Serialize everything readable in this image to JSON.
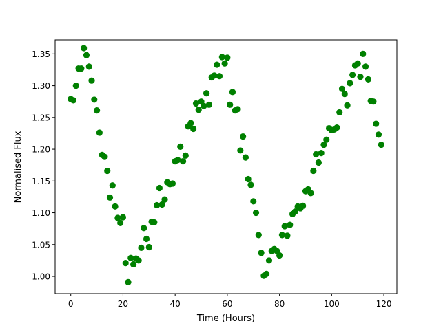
{
  "chart_data": {
    "type": "scatter",
    "title": "",
    "xlabel": "Time (Hours)",
    "ylabel": "Normalised Flux",
    "xlim": [
      -6.0,
      125.0
    ],
    "ylim": [
      0.973,
      1.372
    ],
    "xticks": [
      0,
      20,
      40,
      60,
      80,
      100,
      120
    ],
    "yticks": [
      1.0,
      1.05,
      1.1,
      1.15,
      1.2,
      1.25,
      1.3,
      1.35
    ],
    "xtick_labels": [
      "0",
      "20",
      "40",
      "60",
      "80",
      "100",
      "120"
    ],
    "ytick_labels": [
      "1.00",
      "1.05",
      "1.10",
      "1.15",
      "1.20",
      "1.25",
      "1.30",
      "1.35"
    ],
    "grid": false,
    "marker_color": "#008000",
    "series": [
      {
        "x": [
          0,
          1,
          2,
          3,
          4,
          5,
          6,
          7,
          8,
          9,
          10,
          11,
          12,
          13,
          14,
          15,
          16,
          17,
          18,
          19,
          20,
          21,
          22,
          23,
          24,
          25,
          26,
          27,
          28,
          29,
          30,
          31,
          32,
          33,
          34,
          35,
          36,
          37,
          38,
          39,
          40,
          41,
          42,
          43,
          44,
          45,
          46,
          47,
          48,
          49,
          50,
          51,
          52,
          53,
          54,
          55,
          56,
          57,
          58,
          59,
          60,
          61,
          62,
          63,
          64,
          65,
          66,
          67,
          68,
          69,
          70,
          71,
          72,
          73,
          74,
          75,
          76,
          77,
          78,
          79,
          80,
          81,
          82,
          83,
          84,
          85,
          86,
          87,
          88,
          89,
          90,
          91,
          92,
          93,
          94,
          95,
          96,
          97,
          98,
          99,
          100,
          101,
          102,
          103,
          104,
          105,
          106,
          107,
          108,
          109,
          110,
          111,
          112,
          113,
          114,
          115,
          116,
          117,
          118,
          119
        ],
        "y": [
          1.279,
          1.277,
          1.3,
          1.327,
          1.327,
          1.359,
          1.348,
          1.33,
          1.308,
          1.278,
          1.261,
          1.226,
          1.191,
          1.188,
          1.166,
          1.124,
          1.143,
          1.11,
          1.092,
          1.084,
          1.093,
          1.021,
          0.991,
          1.029,
          1.019,
          1.028,
          1.025,
          1.045,
          1.076,
          1.059,
          1.046,
          1.086,
          1.085,
          1.112,
          1.139,
          1.113,
          1.121,
          1.148,
          1.145,
          1.146,
          1.181,
          1.183,
          1.204,
          1.181,
          1.19,
          1.236,
          1.241,
          1.232,
          1.272,
          1.262,
          1.275,
          1.268,
          1.288,
          1.27,
          1.313,
          1.316,
          1.333,
          1.315,
          1.345,
          1.335,
          1.344,
          1.27,
          1.29,
          1.261,
          1.263,
          1.198,
          1.22,
          1.187,
          1.153,
          1.144,
          1.118,
          1.1,
          1.065,
          1.037,
          1.001,
          1.004,
          1.025,
          1.04,
          1.043,
          1.04,
          1.033,
          1.065,
          1.079,
          1.064,
          1.081,
          1.098,
          1.102,
          1.11,
          1.107,
          1.111,
          1.134,
          1.137,
          1.131,
          1.166,
          1.192,
          1.179,
          1.194,
          1.207,
          1.215,
          1.233,
          1.23,
          1.231,
          1.234,
          1.258,
          1.295,
          1.287,
          1.269,
          1.304,
          1.317,
          1.332,
          1.335,
          1.314,
          1.35,
          1.33,
          1.31,
          1.276,
          1.275,
          1.24,
          1.223,
          1.207
        ]
      }
    ]
  }
}
